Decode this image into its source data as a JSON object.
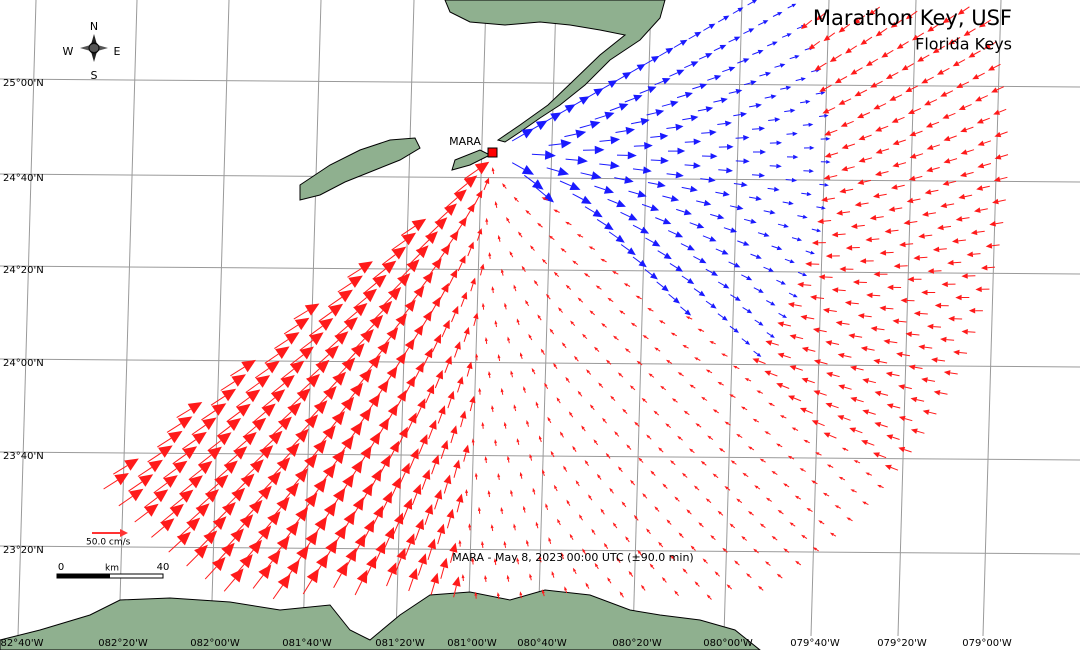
{
  "header": {
    "title": "Marathon Key, USF",
    "subtitle": "Florida Keys"
  },
  "station": {
    "label": "MARA"
  },
  "caption": "MARA - May 8, 2023 00:00 UTC (±90.0 min)",
  "scale": {
    "speed_label": "50.0 cm/s",
    "km_start": "0",
    "km_unit": "km",
    "km_end": "40"
  },
  "compass": {
    "n": "N",
    "s": "S",
    "e": "E",
    "w": "W"
  },
  "grid": {
    "lat_labels": [
      "25°00'N",
      "24°40'N",
      "24°20'N",
      "24°00'N",
      "23°40'N",
      "23°20'N"
    ],
    "lon_labels": [
      "82°40'W",
      "082°20'W",
      "082°00'W",
      "081°40'W",
      "081°20'W",
      "081°00'W",
      "080°40'W",
      "080°20'W",
      "080°00'W",
      "079°40'W",
      "079°20'W",
      "079°00'W"
    ]
  }
}
